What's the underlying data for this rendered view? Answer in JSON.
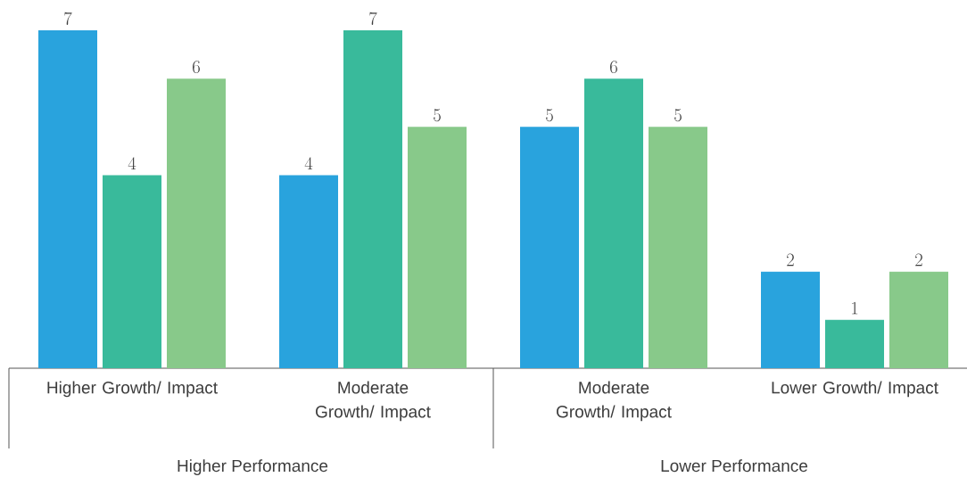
{
  "chart_data": {
    "type": "bar",
    "categories": [
      "Higher Growth/ Impact",
      "Moderate Growth/ Impact",
      "Moderate Growth/ Impact",
      "Lower Growth/ Impact"
    ],
    "series": [
      {
        "color": "#29a3dd",
        "values": [
          7,
          4,
          5,
          2
        ]
      },
      {
        "color": "#39ba9b",
        "values": [
          4,
          7,
          6,
          1
        ]
      },
      {
        "color": "#88c98a",
        "values": [
          6,
          5,
          5,
          2
        ]
      }
    ],
    "data_labels": true,
    "annotations": [
      "Higher Performance",
      "Lower Performance"
    ]
  }
}
